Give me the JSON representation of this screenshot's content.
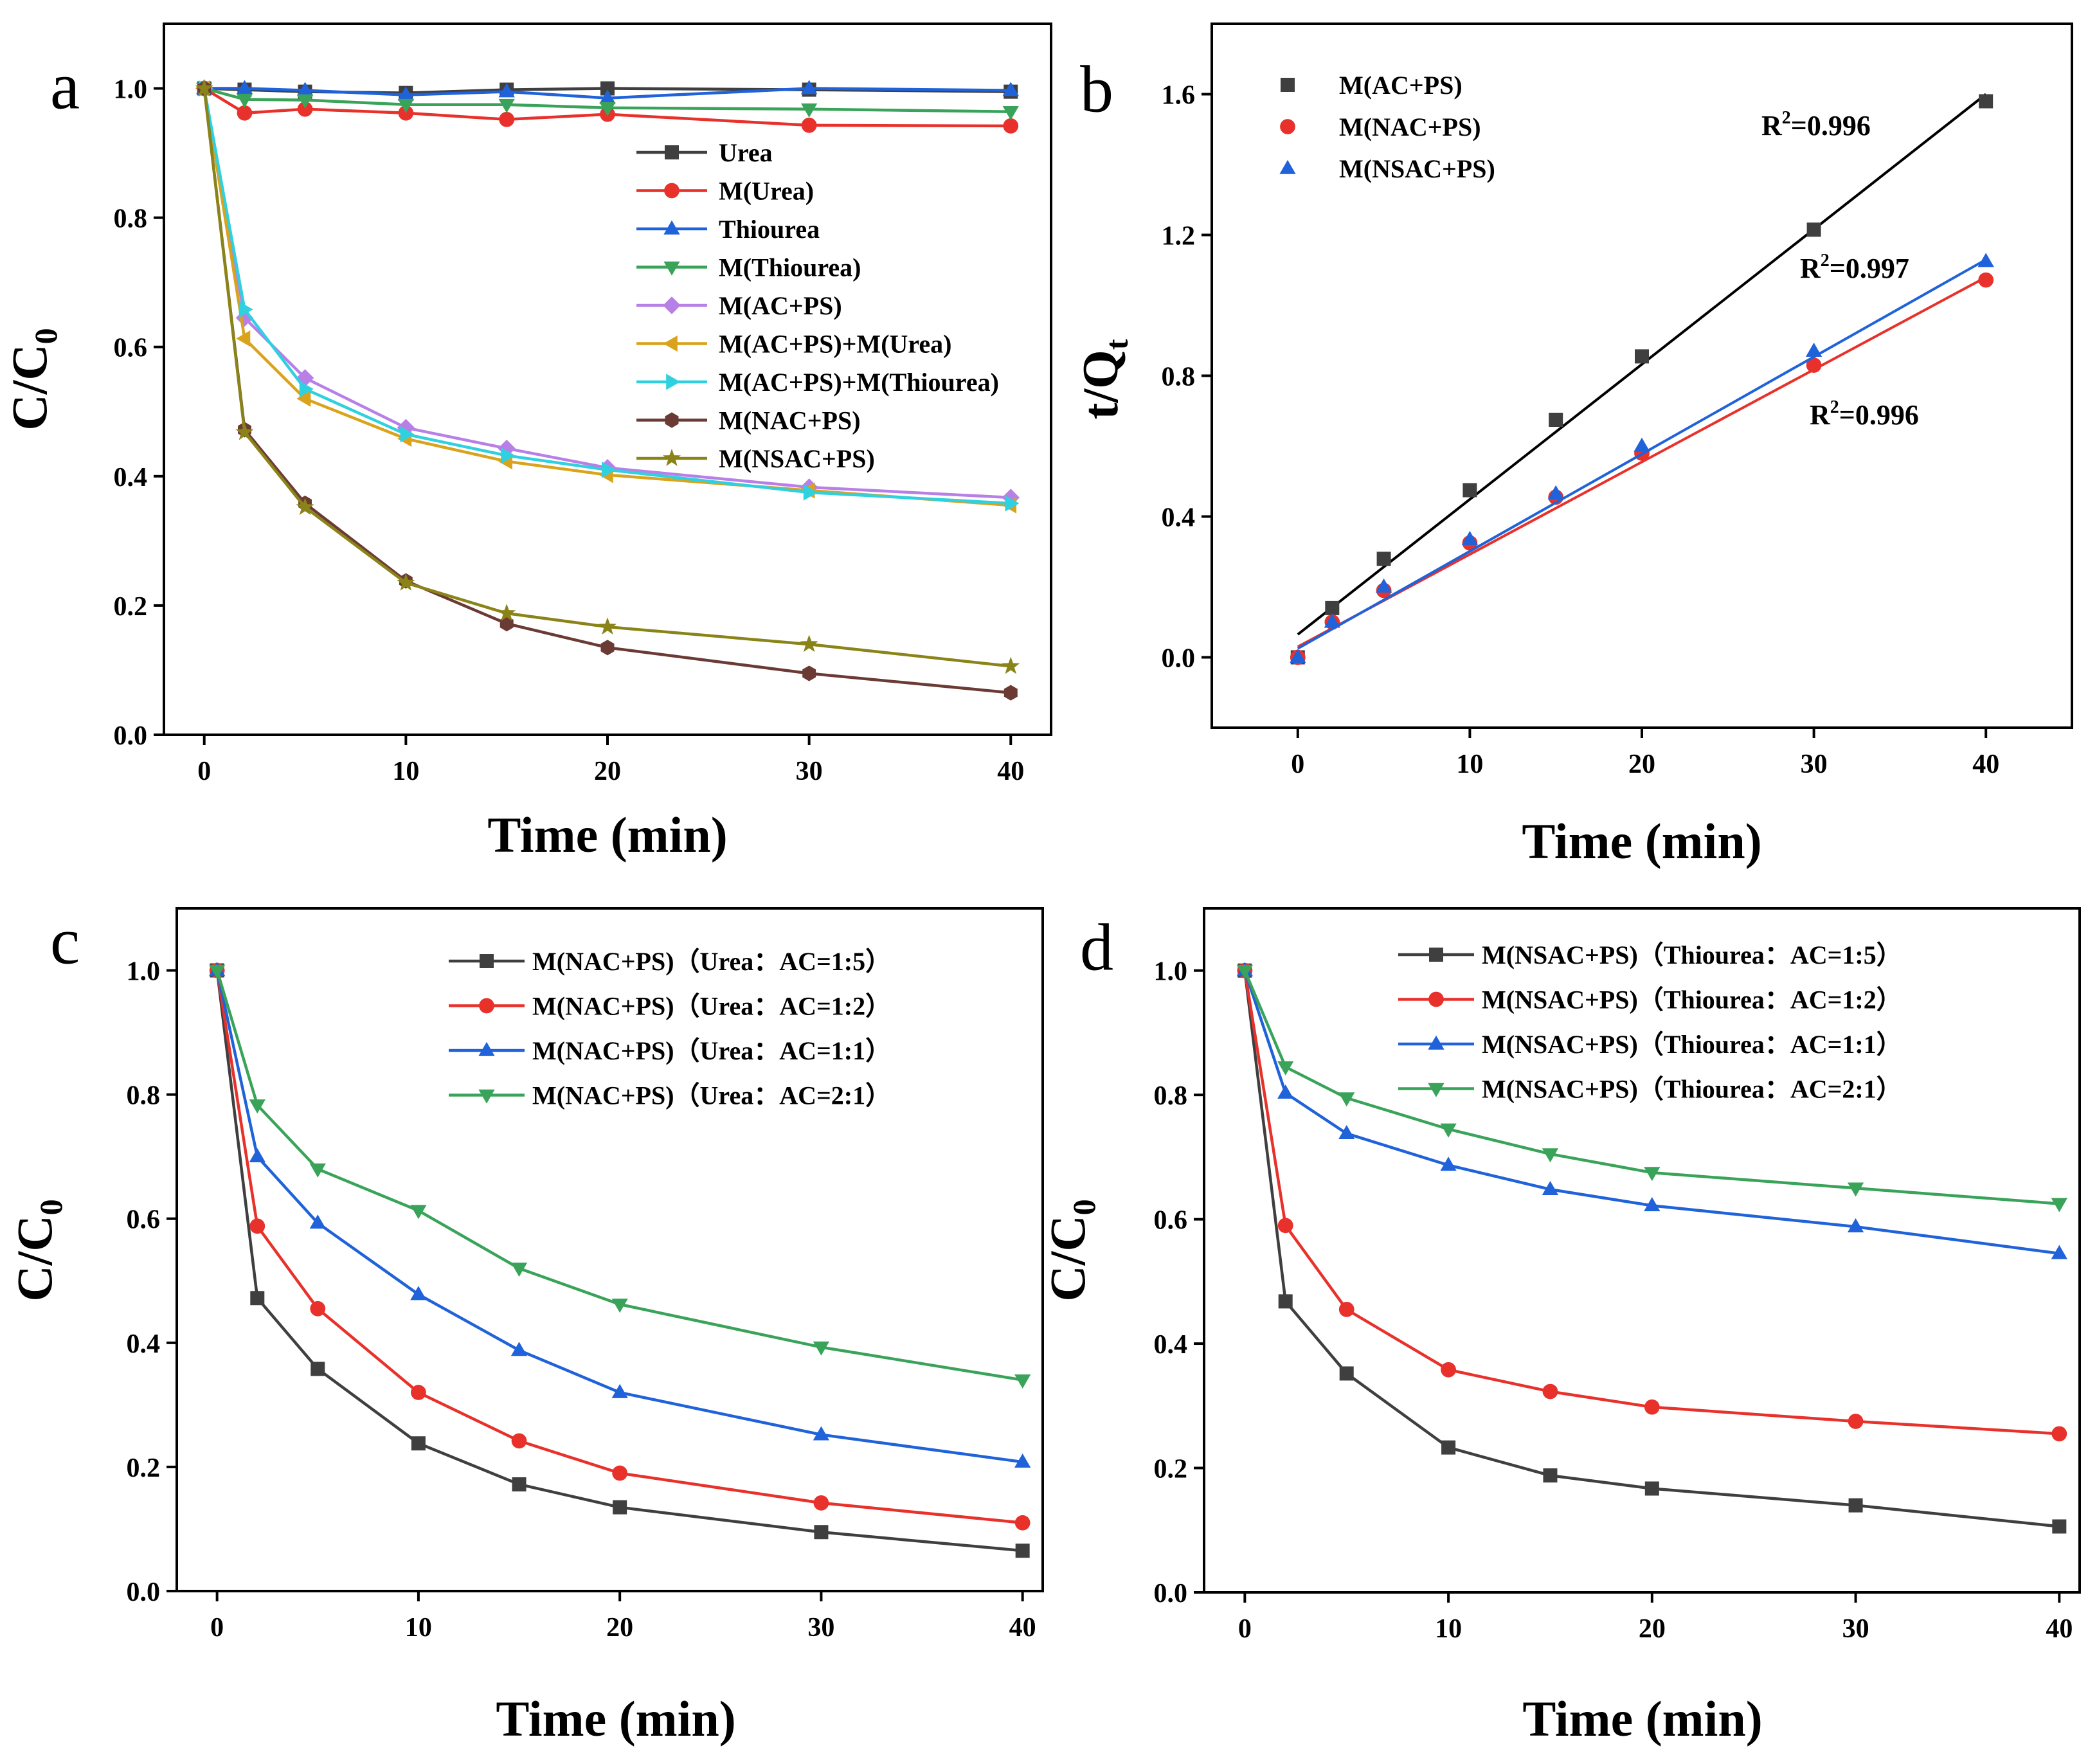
{
  "colors": {
    "dark_gray": "#3f3f3f",
    "red": "#e8312b",
    "blue": "#1f62d9",
    "green": "#3aa35a",
    "violet": "#b87fe6",
    "gold": "#d9a31c",
    "cyan": "#2fd0e0",
    "brown": "#6b3a34",
    "olive": "#8a8418",
    "black": "#000000"
  },
  "chart_data": [
    {
      "panel": "a",
      "type": "line",
      "xlabel": "Time (min)",
      "ylabel": "C/C0",
      "ylabel_main": "C/C",
      "ylabel_sub": "0",
      "xlim": [
        -2,
        42
      ],
      "ylim": [
        0.0,
        1.1
      ],
      "xticks": [
        0,
        10,
        20,
        30,
        40
      ],
      "yticks": [
        0.0,
        0.2,
        0.4,
        0.6,
        0.8,
        1.0
      ],
      "xtick_labels": [
        "0",
        "10",
        "20",
        "30",
        "40"
      ],
      "ytick_labels": [
        "0.0",
        "0.2",
        "0.4",
        "0.6",
        "0.8",
        "1.0"
      ],
      "legend_position": "center-right",
      "x": [
        0,
        2,
        5,
        10,
        15,
        20,
        30,
        40
      ],
      "series": [
        {
          "name": "Urea",
          "marker": "square",
          "color": "dark_gray",
          "values": [
            1.0,
            0.998,
            0.995,
            0.993,
            0.998,
            1.0,
            0.998,
            0.995
          ]
        },
        {
          "name": "M(Urea)",
          "marker": "circle",
          "color": "red",
          "values": [
            1.0,
            0.962,
            0.968,
            0.962,
            0.952,
            0.96,
            0.943,
            0.942
          ]
        },
        {
          "name": "Thiourea",
          "marker": "triangle-up",
          "color": "blue",
          "values": [
            1.0,
            1.0,
            0.997,
            0.99,
            0.995,
            0.985,
            1.0,
            0.997
          ]
        },
        {
          "name": "M(Thiourea)",
          "marker": "triangle-down",
          "color": "green",
          "values": [
            1.0,
            0.983,
            0.982,
            0.975,
            0.975,
            0.97,
            0.968,
            0.964
          ]
        },
        {
          "name": "M(AC+PS)",
          "marker": "diamond",
          "color": "violet",
          "values": [
            1.0,
            0.645,
            0.552,
            0.475,
            0.443,
            0.413,
            0.383,
            0.367
          ]
        },
        {
          "name": "M(AC+PS)+M(Urea)",
          "marker": "triangle-left",
          "color": "gold",
          "values": [
            1.0,
            0.613,
            0.52,
            0.458,
            0.423,
            0.402,
            0.378,
            0.355
          ]
        },
        {
          "name": "M(AC+PS)+M(Thiourea)",
          "marker": "triangle-right",
          "color": "cyan",
          "values": [
            1.0,
            0.658,
            0.535,
            0.465,
            0.432,
            0.41,
            0.375,
            0.358
          ]
        },
        {
          "name": "M(NAC+PS)",
          "marker": "hexagon",
          "color": "brown",
          "values": [
            1.0,
            0.472,
            0.358,
            0.238,
            0.172,
            0.135,
            0.095,
            0.065
          ]
        },
        {
          "name": "M(NSAC+PS)",
          "marker": "star",
          "color": "olive",
          "values": [
            1.0,
            0.468,
            0.352,
            0.235,
            0.188,
            0.167,
            0.14,
            0.106
          ]
        }
      ]
    },
    {
      "panel": "b",
      "type": "scatter",
      "xlabel": "Time (min)",
      "ylabel": "t/Qt",
      "ylabel_main": "t/Q",
      "ylabel_sub": "t",
      "xlim": [
        -5,
        45
      ],
      "ylim": [
        -0.2,
        1.8
      ],
      "xticks": [
        0,
        10,
        20,
        30,
        40
      ],
      "yticks": [
        0.0,
        0.4,
        0.8,
        1.2,
        1.6
      ],
      "xtick_labels": [
        "0",
        "10",
        "20",
        "30",
        "40"
      ],
      "ytick_labels": [
        "0.0",
        "0.4",
        "0.8",
        "1.2",
        "1.6"
      ],
      "legend_position": "top-left",
      "x": [
        0,
        2,
        5,
        10,
        15,
        20,
        30,
        40
      ],
      "series": [
        {
          "name": "M(AC+PS)",
          "marker": "square",
          "color": "dark_gray",
          "values": [
            0.0,
            0.14,
            0.28,
            0.475,
            0.675,
            0.855,
            1.215,
            1.58
          ],
          "fit": [
            0.065,
            1.6
          ],
          "fit_color": "black"
        },
        {
          "name": "M(NAC+PS)",
          "marker": "circle",
          "color": "red",
          "values": [
            0.0,
            0.1,
            0.19,
            0.325,
            0.455,
            0.58,
            0.83,
            1.072
          ],
          "fit": [
            0.03,
            1.08
          ],
          "fit_color": "red"
        },
        {
          "name": "M(NSAC+PS)",
          "marker": "triangle-up",
          "color": "blue",
          "values": [
            0.0,
            0.1,
            0.2,
            0.335,
            0.465,
            0.6,
            0.87,
            1.125
          ],
          "fit": [
            0.025,
            1.13
          ],
          "fit_color": "blue"
        }
      ],
      "annotations": [
        {
          "base": "R",
          "sup": "2",
          "rest": "=0.996"
        },
        {
          "base": "R",
          "sup": "2",
          "rest": "=0.997"
        },
        {
          "base": "R",
          "sup": "2",
          "rest": "=0.996"
        }
      ]
    },
    {
      "panel": "c",
      "type": "line",
      "xlabel": "Time (min)",
      "ylabel": "C/C0",
      "ylabel_main": "C/C",
      "ylabel_sub": "0",
      "xlim": [
        -2,
        41
      ],
      "ylim": [
        0.0,
        1.1
      ],
      "xticks": [
        0,
        10,
        20,
        30,
        40
      ],
      "yticks": [
        0.0,
        0.2,
        0.4,
        0.6,
        0.8,
        1.0
      ],
      "xtick_labels": [
        "0",
        "10",
        "20",
        "30",
        "40"
      ],
      "ytick_labels": [
        "0.0",
        "0.2",
        "0.4",
        "0.6",
        "0.8",
        "1.0"
      ],
      "legend_position": "top-right",
      "x": [
        0,
        2,
        5,
        10,
        15,
        20,
        30,
        40
      ],
      "series": [
        {
          "name": "M(NAC+PS)（Urea：AC=1:5）",
          "marker": "square",
          "color": "dark_gray",
          "values": [
            1.0,
            0.472,
            0.358,
            0.238,
            0.172,
            0.135,
            0.095,
            0.065
          ]
        },
        {
          "name": "M(NAC+PS)（Urea：AC=1:2）",
          "marker": "circle",
          "color": "red",
          "values": [
            1.0,
            0.588,
            0.455,
            0.32,
            0.242,
            0.19,
            0.142,
            0.11
          ]
        },
        {
          "name": "M(NAC+PS)（Urea：AC=1:1）",
          "marker": "triangle-up",
          "color": "blue",
          "values": [
            1.0,
            0.7,
            0.593,
            0.478,
            0.388,
            0.32,
            0.252,
            0.208
          ]
        },
        {
          "name": "M(NAC+PS)（Urea：AC=2:1）",
          "marker": "triangle-down",
          "color": "green",
          "values": [
            1.0,
            0.783,
            0.68,
            0.613,
            0.52,
            0.462,
            0.393,
            0.34
          ]
        }
      ]
    },
    {
      "panel": "d",
      "type": "line",
      "xlabel": "Time (min)",
      "ylabel": "C/C0",
      "ylabel_main": "C/C",
      "ylabel_sub": "0",
      "xlim": [
        -2,
        41
      ],
      "ylim": [
        0.0,
        1.1
      ],
      "xticks": [
        0,
        10,
        20,
        30,
        40
      ],
      "yticks": [
        0.0,
        0.2,
        0.4,
        0.6,
        0.8,
        1.0
      ],
      "xtick_labels": [
        "0",
        "10",
        "20",
        "30",
        "40"
      ],
      "ytick_labels": [
        "0.0",
        "0.2",
        "0.4",
        "0.6",
        "0.8",
        "1.0"
      ],
      "legend_position": "top-right",
      "x": [
        0,
        2,
        5,
        10,
        15,
        20,
        30,
        40
      ],
      "series": [
        {
          "name": "M(NSAC+PS)（Thiourea：AC=1:5）",
          "marker": "square",
          "color": "dark_gray",
          "values": [
            1.0,
            0.468,
            0.352,
            0.233,
            0.188,
            0.167,
            0.14,
            0.106
          ]
        },
        {
          "name": "M(NSAC+PS)（Thiourea：AC=1:2）",
          "marker": "circle",
          "color": "red",
          "values": [
            1.0,
            0.59,
            0.455,
            0.358,
            0.323,
            0.298,
            0.275,
            0.255
          ]
        },
        {
          "name": "M(NSAC+PS)（Thiourea：AC=1:1）",
          "marker": "triangle-up",
          "color": "blue",
          "values": [
            1.0,
            0.803,
            0.738,
            0.687,
            0.648,
            0.622,
            0.588,
            0.545
          ]
        },
        {
          "name": "M(NSAC+PS)（Thiourea：AC=2:1）",
          "marker": "triangle-down",
          "color": "green",
          "values": [
            1.0,
            0.845,
            0.795,
            0.745,
            0.705,
            0.675,
            0.65,
            0.625
          ]
        }
      ]
    }
  ]
}
